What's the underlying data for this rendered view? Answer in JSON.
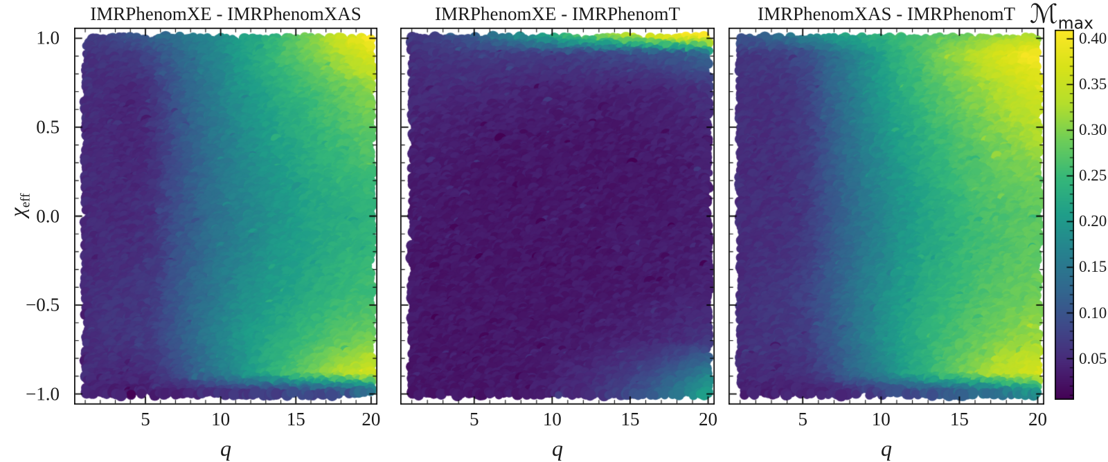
{
  "figure": {
    "background": "#ffffff",
    "text_color": "#1a1a1a"
  },
  "axes": {
    "xlabel": "q",
    "ylabel_symbol": "χ",
    "ylabel_subscript": "eff"
  },
  "colorbar": {
    "label_symbol": "ℳ",
    "label_subscript": "max",
    "colormap": "viridis",
    "vmin": 0.005,
    "vmax": 0.41,
    "tick_values": [
      0.4,
      0.35,
      0.3,
      0.25,
      0.2,
      0.15,
      0.1,
      0.05
    ],
    "tick_labels": [
      "0.40",
      "0.35",
      "0.30",
      "0.25",
      "0.20",
      "0.15",
      "0.10",
      "0.05"
    ],
    "minor_tick_step": 0.01
  },
  "chart_data": [
    {
      "type": "scatter",
      "title": "IMRPhenomXE - IMRPhenomXAS",
      "xlabel": "q",
      "ylabel": "χ_eff",
      "color_quantity": "maximum mismatch ℳ_max",
      "xlim": [
        0.26,
        20.42
      ],
      "ylim": [
        -1.06,
        1.06
      ],
      "x_ticks": [
        5,
        10,
        15,
        20
      ],
      "x_tick_labels": [
        "5",
        "10",
        "15",
        "20"
      ],
      "y_ticks": [
        1.0,
        0.5,
        0.0,
        -0.5,
        -1.0
      ],
      "y_tick_labels": [
        "1.0",
        "0.5",
        "0.0",
        "−0.5",
        "−1.0"
      ],
      "grid": {
        "q": [
          1,
          2.5,
          4,
          5.5,
          7,
          9,
          11,
          13.5,
          16,
          18,
          20
        ],
        "chi_eff": [
          -1.0,
          -0.9,
          -0.7,
          -0.45,
          -0.2,
          0.0,
          0.2,
          0.45,
          0.7,
          0.9,
          1.0
        ],
        "mismatch_max": [
          [
            0.04,
            0.038,
            0.035,
            0.035,
            0.04,
            0.05,
            0.06,
            0.07,
            0.08,
            0.09,
            0.11
          ],
          [
            0.048,
            0.05,
            0.048,
            0.055,
            0.085,
            0.13,
            0.18,
            0.24,
            0.29,
            0.33,
            0.36
          ],
          [
            0.05,
            0.058,
            0.06,
            0.07,
            0.1,
            0.15,
            0.19,
            0.225,
            0.255,
            0.275,
            0.29
          ],
          [
            0.05,
            0.058,
            0.06,
            0.068,
            0.1,
            0.14,
            0.175,
            0.205,
            0.228,
            0.245,
            0.255
          ],
          [
            0.048,
            0.052,
            0.052,
            0.06,
            0.092,
            0.13,
            0.165,
            0.195,
            0.218,
            0.235,
            0.245
          ],
          [
            0.048,
            0.05,
            0.048,
            0.058,
            0.09,
            0.128,
            0.16,
            0.19,
            0.215,
            0.228,
            0.238
          ],
          [
            0.048,
            0.048,
            0.045,
            0.055,
            0.09,
            0.13,
            0.165,
            0.198,
            0.225,
            0.24,
            0.255
          ],
          [
            0.05,
            0.048,
            0.042,
            0.052,
            0.092,
            0.135,
            0.172,
            0.208,
            0.238,
            0.258,
            0.278
          ],
          [
            0.055,
            0.05,
            0.045,
            0.058,
            0.1,
            0.148,
            0.188,
            0.225,
            0.258,
            0.28,
            0.305
          ],
          [
            0.058,
            0.06,
            0.065,
            0.085,
            0.118,
            0.158,
            0.2,
            0.248,
            0.292,
            0.33,
            0.38
          ],
          [
            0.07,
            0.08,
            0.098,
            0.118,
            0.14,
            0.168,
            0.2,
            0.24,
            0.295,
            0.355,
            0.41
          ]
        ]
      }
    },
    {
      "type": "scatter",
      "title": "IMRPhenomXE - IMRPhenomT",
      "xlabel": "q",
      "ylabel": "χ_eff",
      "color_quantity": "maximum mismatch ℳ_max",
      "xlim": [
        0.26,
        20.42
      ],
      "ylim": [
        -1.06,
        1.06
      ],
      "x_ticks": [
        5,
        10,
        15,
        20
      ],
      "x_tick_labels": [
        "5",
        "10",
        "15",
        "20"
      ],
      "y_ticks": [
        1.0,
        0.5,
        0.0,
        -0.5,
        -1.0
      ],
      "y_tick_labels": [
        "1.0",
        "0.5",
        "0.0",
        "−0.5",
        "−1.0"
      ],
      "grid": {
        "q": [
          1,
          2.5,
          4,
          5.5,
          7,
          9,
          11,
          13.5,
          16,
          18,
          20
        ],
        "chi_eff": [
          -1.0,
          -0.9,
          -0.7,
          -0.45,
          -0.2,
          0.0,
          0.2,
          0.45,
          0.7,
          0.9,
          1.0
        ],
        "mismatch_max": [
          [
            0.03,
            0.028,
            0.028,
            0.028,
            0.03,
            0.035,
            0.045,
            0.065,
            0.1,
            0.15,
            0.215
          ],
          [
            0.03,
            0.028,
            0.028,
            0.028,
            0.03,
            0.032,
            0.04,
            0.055,
            0.08,
            0.115,
            0.165
          ],
          [
            0.03,
            0.028,
            0.028,
            0.028,
            0.028,
            0.03,
            0.032,
            0.036,
            0.042,
            0.05,
            0.06
          ],
          [
            0.03,
            0.028,
            0.028,
            0.028,
            0.028,
            0.028,
            0.028,
            0.03,
            0.032,
            0.036,
            0.04
          ],
          [
            0.03,
            0.028,
            0.028,
            0.028,
            0.028,
            0.028,
            0.028,
            0.028,
            0.03,
            0.032,
            0.036
          ],
          [
            0.032,
            0.03,
            0.028,
            0.028,
            0.028,
            0.028,
            0.028,
            0.028,
            0.03,
            0.032,
            0.036
          ],
          [
            0.035,
            0.032,
            0.03,
            0.028,
            0.028,
            0.028,
            0.028,
            0.028,
            0.03,
            0.032,
            0.038
          ],
          [
            0.04,
            0.038,
            0.035,
            0.032,
            0.03,
            0.03,
            0.03,
            0.03,
            0.032,
            0.036,
            0.042
          ],
          [
            0.048,
            0.048,
            0.048,
            0.045,
            0.042,
            0.04,
            0.04,
            0.04,
            0.042,
            0.048,
            0.058
          ],
          [
            0.055,
            0.06,
            0.065,
            0.068,
            0.07,
            0.072,
            0.075,
            0.08,
            0.09,
            0.105,
            0.13
          ],
          [
            0.065,
            0.075,
            0.095,
            0.125,
            0.16,
            0.2,
            0.25,
            0.305,
            0.355,
            0.395,
            0.415
          ]
        ]
      }
    },
    {
      "type": "scatter",
      "title": "IMRPhenomXAS - IMRPhenomT",
      "xlabel": "q",
      "ylabel": "χ_eff",
      "color_quantity": "maximum mismatch ℳ_max",
      "xlim": [
        0.26,
        20.42
      ],
      "ylim": [
        -1.06,
        1.06
      ],
      "x_ticks": [
        5,
        10,
        15,
        20
      ],
      "x_tick_labels": [
        "5",
        "10",
        "15",
        "20"
      ],
      "y_ticks": [
        1.0,
        0.5,
        0.0,
        -0.5,
        -1.0
      ],
      "y_tick_labels": [
        "1.0",
        "0.5",
        "0.0",
        "−0.5",
        "−1.0"
      ],
      "grid": {
        "q": [
          1,
          2.5,
          4,
          5.5,
          7,
          9,
          11,
          13.5,
          16,
          18,
          20
        ],
        "chi_eff": [
          -1.0,
          -0.9,
          -0.7,
          -0.45,
          -0.2,
          0.0,
          0.2,
          0.45,
          0.7,
          0.9,
          1.0
        ],
        "mismatch_max": [
          [
            0.04,
            0.038,
            0.038,
            0.04,
            0.048,
            0.06,
            0.078,
            0.1,
            0.125,
            0.15,
            0.18
          ],
          [
            0.048,
            0.05,
            0.05,
            0.06,
            0.092,
            0.14,
            0.195,
            0.255,
            0.305,
            0.345,
            0.372
          ],
          [
            0.052,
            0.06,
            0.062,
            0.075,
            0.11,
            0.16,
            0.208,
            0.248,
            0.278,
            0.3,
            0.318
          ],
          [
            0.052,
            0.06,
            0.065,
            0.078,
            0.112,
            0.158,
            0.2,
            0.238,
            0.262,
            0.278,
            0.29
          ],
          [
            0.05,
            0.055,
            0.058,
            0.07,
            0.108,
            0.15,
            0.19,
            0.228,
            0.255,
            0.268,
            0.278
          ],
          [
            0.05,
            0.052,
            0.055,
            0.068,
            0.105,
            0.15,
            0.188,
            0.225,
            0.255,
            0.268,
            0.28
          ],
          [
            0.05,
            0.052,
            0.055,
            0.068,
            0.108,
            0.155,
            0.195,
            0.235,
            0.265,
            0.28,
            0.295
          ],
          [
            0.055,
            0.052,
            0.055,
            0.07,
            0.115,
            0.165,
            0.208,
            0.248,
            0.28,
            0.305,
            0.328
          ],
          [
            0.058,
            0.055,
            0.058,
            0.078,
            0.125,
            0.178,
            0.225,
            0.268,
            0.305,
            0.335,
            0.365
          ],
          [
            0.065,
            0.068,
            0.075,
            0.095,
            0.135,
            0.185,
            0.235,
            0.285,
            0.335,
            0.378,
            0.408
          ],
          [
            0.1,
            0.118,
            0.145,
            0.175,
            0.205,
            0.23,
            0.252,
            0.272,
            0.292,
            0.312,
            0.33
          ]
        ]
      }
    }
  ]
}
